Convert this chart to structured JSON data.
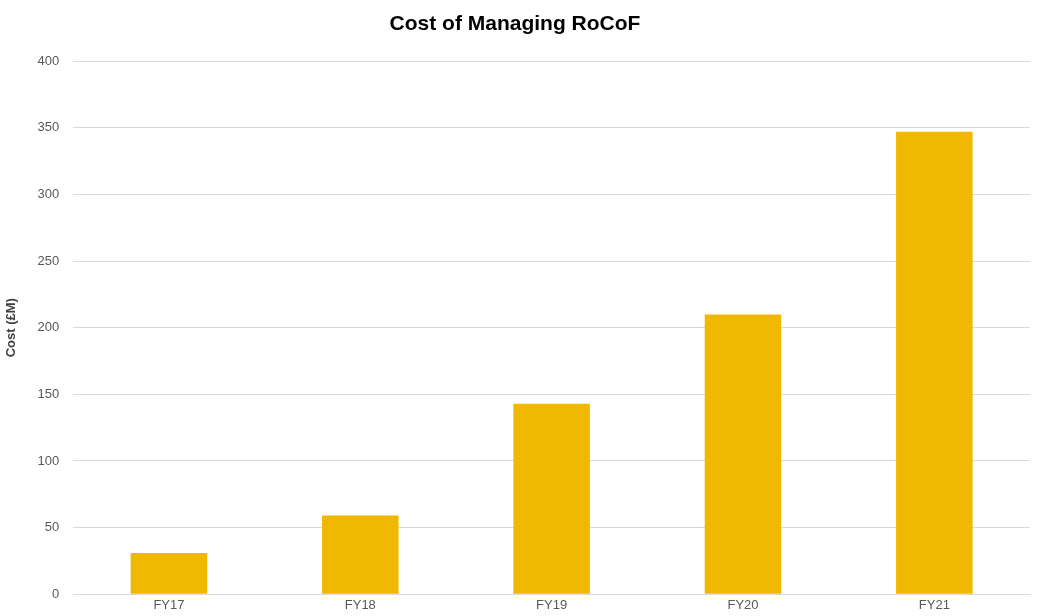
{
  "chart_data": {
    "type": "bar",
    "title": "Cost of Managing RoCoF",
    "ylabel": "Cost (£M)",
    "categories": [
      "FY17",
      "FY18",
      "FY19",
      "FY20",
      "FY21"
    ],
    "values": [
      31,
      59,
      143,
      210,
      347
    ],
    "color": "#f0b800",
    "ylim": [
      0,
      400
    ],
    "yticks": [
      0,
      50,
      100,
      150,
      200,
      250,
      300,
      350,
      400
    ],
    "grid": "y",
    "legend": false
  }
}
